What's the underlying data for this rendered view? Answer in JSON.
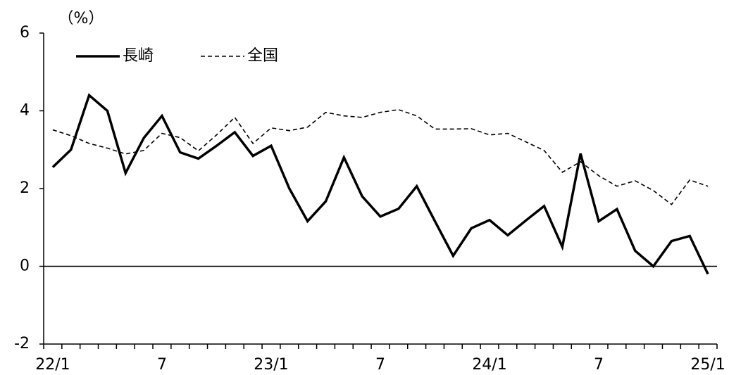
{
  "chart_data": {
    "type": "line",
    "y_label": "（%）",
    "categories": [
      "22/1",
      null,
      null,
      null,
      null,
      null,
      "7",
      null,
      null,
      null,
      null,
      null,
      "23/1",
      null,
      null,
      null,
      null,
      null,
      "7",
      null,
      null,
      null,
      null,
      null,
      "24/1",
      null,
      null,
      null,
      null,
      null,
      "7",
      null,
      null,
      null,
      null,
      null,
      "25/1"
    ],
    "series": [
      {
        "name": "長崎",
        "color": "#000000",
        "line_style": "solid",
        "values": [
          2.55,
          3.0,
          4.4,
          4.0,
          2.4,
          3.3,
          3.87,
          2.93,
          2.77,
          3.1,
          3.45,
          2.84,
          3.1,
          2.0,
          1.16,
          1.67,
          2.8,
          1.8,
          1.28,
          1.48,
          2.06,
          1.16,
          0.27,
          0.98,
          1.19,
          0.8,
          1.18,
          1.55,
          0.5,
          2.9,
          1.16,
          1.47,
          0.4,
          0.0,
          0.65,
          0.78,
          -0.2
        ]
      },
      {
        "name": "全国",
        "color": "#000000",
        "line_style": "dashed",
        "values": [
          3.51,
          3.36,
          3.16,
          3.04,
          2.89,
          2.98,
          3.42,
          3.31,
          2.97,
          3.38,
          3.83,
          3.16,
          3.56,
          3.49,
          3.58,
          3.96,
          3.87,
          3.83,
          3.96,
          4.03,
          3.87,
          3.53,
          3.53,
          3.54,
          3.38,
          3.42,
          3.2,
          2.98,
          2.42,
          2.69,
          2.33,
          2.06,
          2.2,
          1.95,
          1.59,
          2.22,
          2.06
        ]
      }
    ],
    "ylim": [
      -2,
      6
    ],
    "yticks": [
      -2,
      0,
      2,
      4,
      6
    ],
    "legend": "upper left",
    "grid": false
  }
}
